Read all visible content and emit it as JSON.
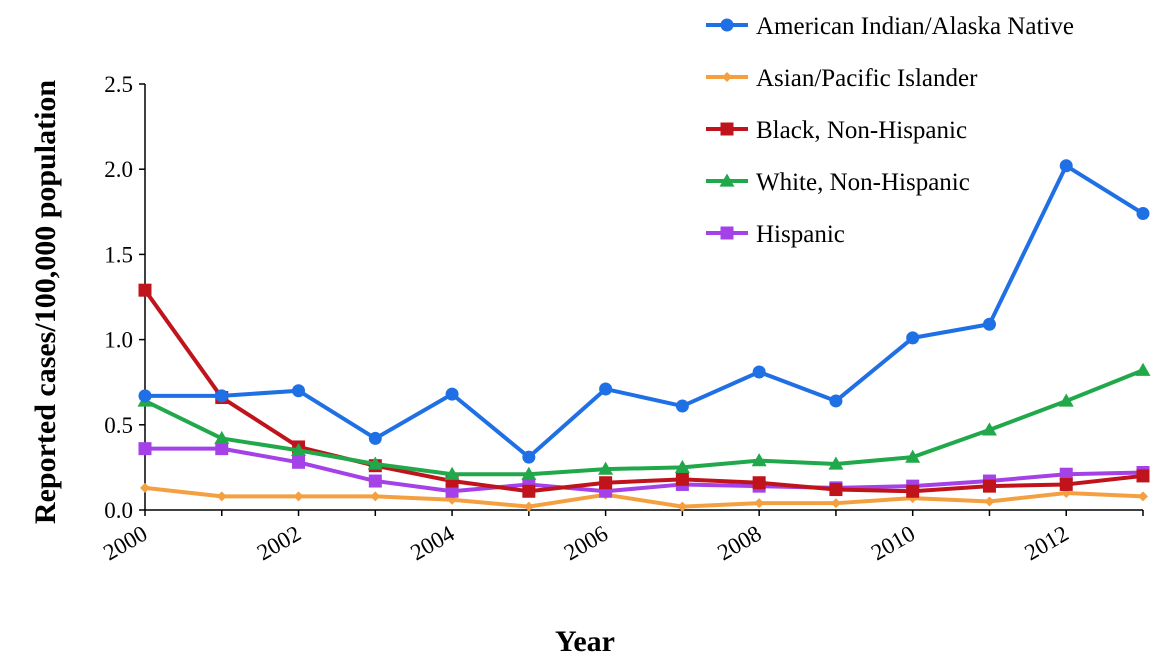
{
  "chart_data": {
    "type": "line",
    "title": "",
    "xlabel": "Year",
    "ylabel": "Reported cases/100,000 population",
    "x": [
      2000,
      2001,
      2002,
      2003,
      2004,
      2005,
      2006,
      2007,
      2008,
      2009,
      2010,
      2011,
      2012,
      2013
    ],
    "xticks": [
      "2000",
      "2002",
      "2004",
      "2006",
      "2008",
      "2010",
      "2012"
    ],
    "yticks": [
      "0.0",
      "0.5",
      "1.0",
      "1.5",
      "2.0",
      "2.5"
    ],
    "ylim": [
      0,
      2.5
    ],
    "xlim": [
      2000,
      2013
    ],
    "grid": false,
    "legend_position": "top-right",
    "series": [
      {
        "name": "American Indian/Alaska Native",
        "color": "#1f6fe5",
        "marker": "circle",
        "values": [
          0.67,
          0.67,
          0.7,
          0.42,
          0.68,
          0.31,
          0.71,
          0.61,
          0.81,
          0.64,
          1.01,
          1.09,
          2.02,
          1.74
        ]
      },
      {
        "name": "Asian/Pacific Islander",
        "color": "#f5a040",
        "marker": "diamond",
        "values": [
          0.13,
          0.08,
          0.08,
          0.08,
          0.06,
          0.02,
          0.09,
          0.02,
          0.04,
          0.04,
          0.07,
          0.05,
          0.1,
          0.08
        ]
      },
      {
        "name": "Black, Non-Hispanic",
        "color": "#c0141c",
        "marker": "square",
        "values": [
          1.29,
          0.66,
          0.37,
          0.26,
          0.17,
          0.11,
          0.16,
          0.18,
          0.16,
          0.12,
          0.11,
          0.14,
          0.15,
          0.2
        ]
      },
      {
        "name": "White, Non-Hispanic",
        "color": "#21a84a",
        "marker": "triangle",
        "values": [
          0.64,
          0.42,
          0.35,
          0.27,
          0.21,
          0.21,
          0.24,
          0.25,
          0.29,
          0.27,
          0.31,
          0.47,
          0.64,
          0.82
        ]
      },
      {
        "name": "Hispanic",
        "color": "#a442e8",
        "marker": "square",
        "values": [
          0.36,
          0.36,
          0.28,
          0.17,
          0.11,
          0.15,
          0.11,
          0.15,
          0.14,
          0.13,
          0.14,
          0.17,
          0.21,
          0.22
        ]
      }
    ]
  }
}
